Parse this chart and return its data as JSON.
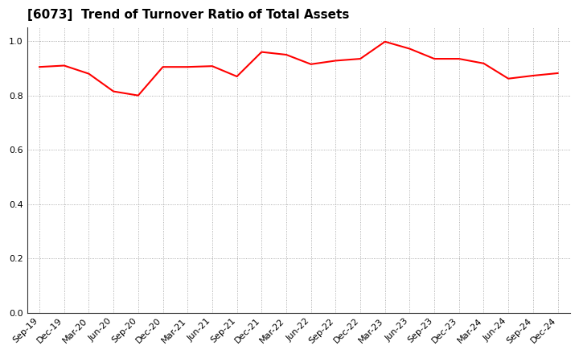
{
  "title": "[6073]  Trend of Turnover Ratio of Total Assets",
  "line_color": "#FF0000",
  "line_width": 1.5,
  "background_color": "#FFFFFF",
  "ylim": [
    0.0,
    1.05
  ],
  "yticks": [
    0.0,
    0.2,
    0.4,
    0.6,
    0.8,
    1.0
  ],
  "grid_color": "#999999",
  "labels": [
    "Sep-19",
    "Dec-19",
    "Mar-20",
    "Jun-20",
    "Sep-20",
    "Dec-20",
    "Mar-21",
    "Jun-21",
    "Sep-21",
    "Dec-21",
    "Mar-22",
    "Jun-22",
    "Sep-22",
    "Dec-22",
    "Mar-23",
    "Jun-23",
    "Sep-23",
    "Dec-23",
    "Mar-24",
    "Jun-24",
    "Sep-24",
    "Dec-24"
  ],
  "values": [
    0.905,
    0.91,
    0.88,
    0.815,
    0.8,
    0.905,
    0.905,
    0.908,
    0.87,
    0.96,
    0.95,
    0.915,
    0.928,
    0.935,
    0.998,
    0.972,
    0.935,
    0.935,
    0.918,
    0.862,
    0.873,
    0.882
  ],
  "title_fontsize": 11,
  "tick_fontsize": 8
}
